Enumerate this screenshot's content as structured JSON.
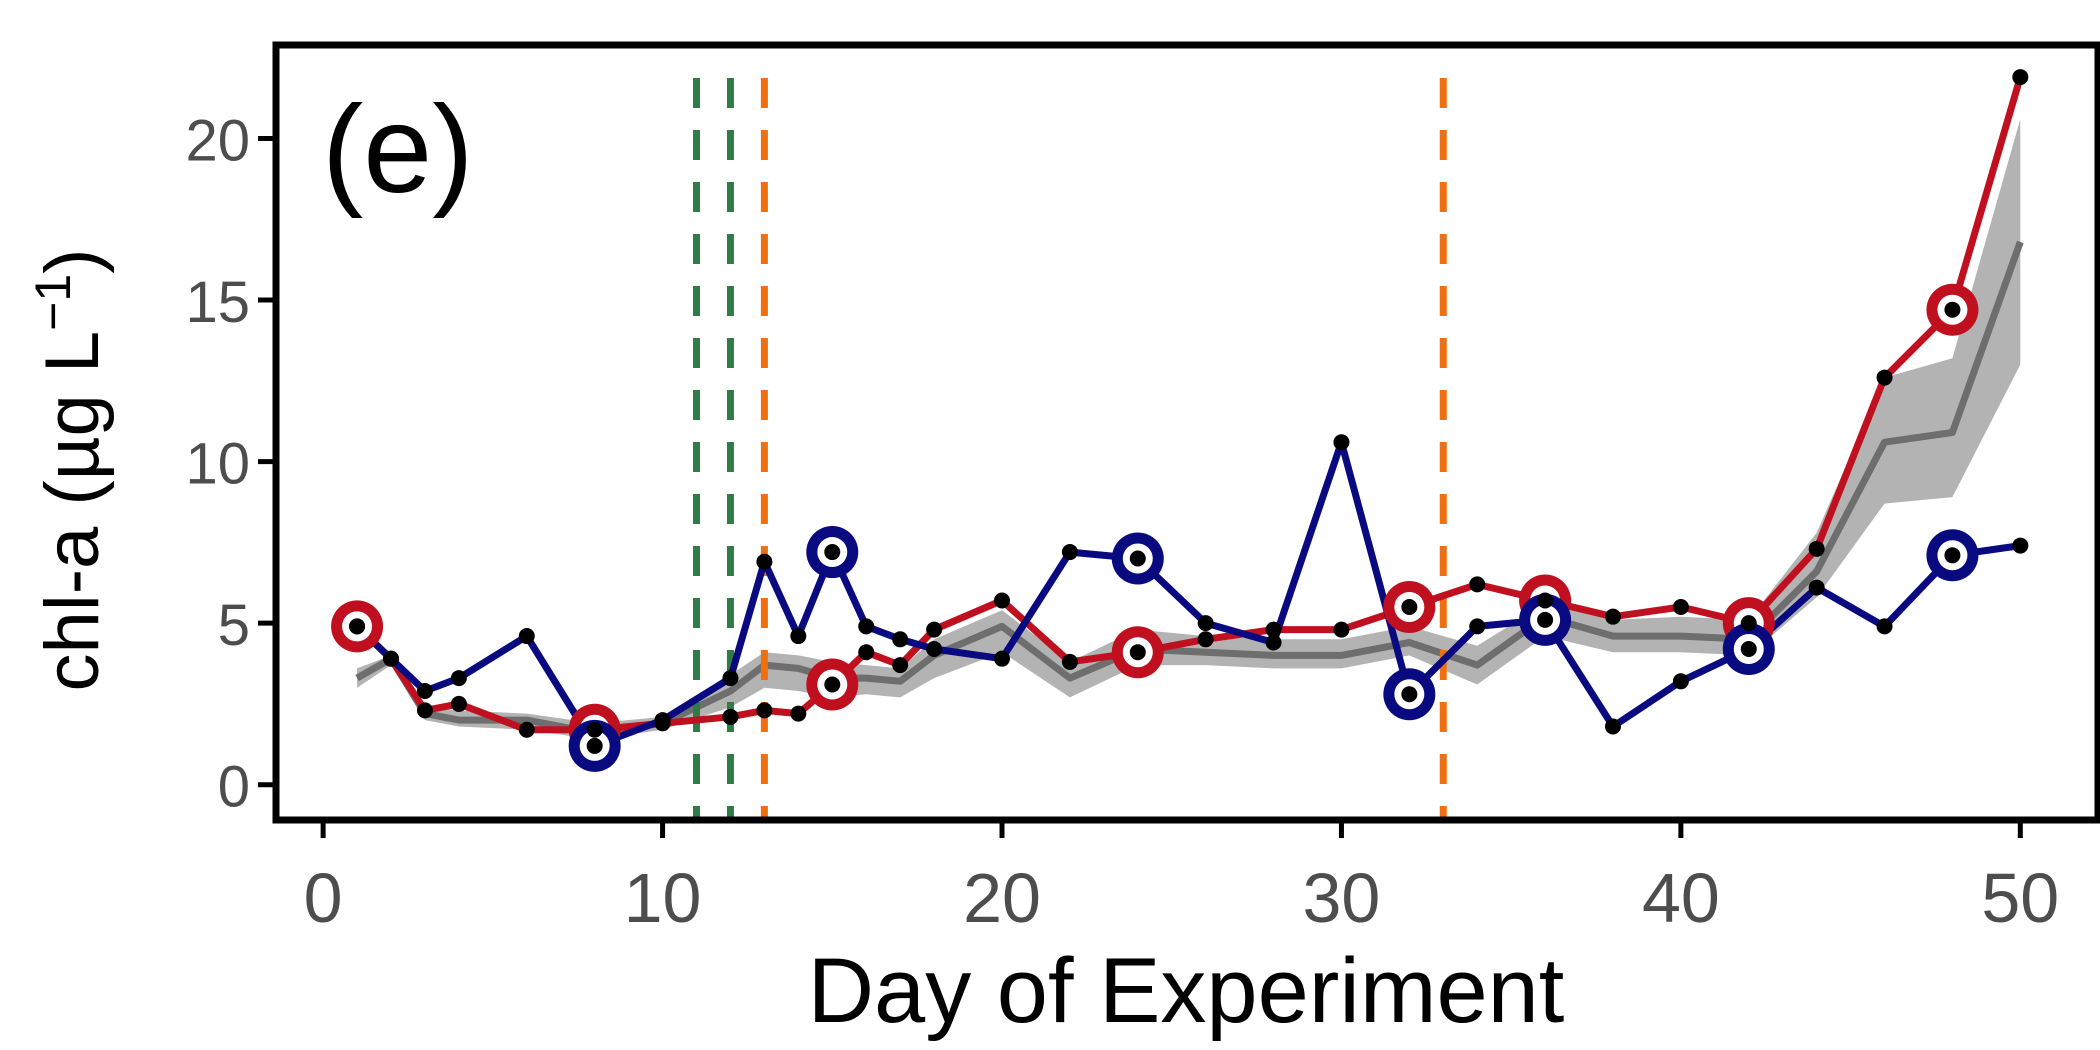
{
  "chart_data": {
    "type": "line",
    "panel_label": "(e)",
    "xlabel": "Day of Experiment",
    "ylabel_main": "chl-a (µg L",
    "ylabel_superscript": "−1",
    "ylabel_close": ")",
    "xlim": [
      -1.3,
      52.2
    ],
    "ylim": [
      -1.0,
      22.8
    ],
    "xticks": [
      0,
      10,
      20,
      30,
      40,
      50
    ],
    "yticks": [
      0,
      5,
      10,
      15,
      20
    ],
    "xtick_labels": [
      "0",
      "10",
      "20",
      "30",
      "40",
      "50"
    ],
    "ytick_labels": [
      "0",
      "5",
      "10",
      "15",
      "20"
    ],
    "grid": false,
    "legend": "none",
    "colors": {
      "red": "#c0101f",
      "blue": "#0a0a80",
      "mean": "#6e6e6e",
      "ribbon": "#b3b3b3",
      "green_line": "#2e7d46",
      "orange_line": "#f07010",
      "point": "#000000",
      "axis": "#000000"
    },
    "vlines": [
      {
        "x": 11,
        "color": "green"
      },
      {
        "x": 12,
        "color": "green"
      },
      {
        "x": 13,
        "color": "orange"
      },
      {
        "x": 33,
        "color": "orange"
      }
    ],
    "series": [
      {
        "key": "red",
        "x": [
          1,
          2,
          3,
          4,
          6,
          8,
          10,
          12,
          13,
          14,
          15,
          16,
          17,
          18,
          20,
          22,
          24,
          26,
          28,
          30,
          32,
          34,
          36,
          38,
          40,
          42,
          44,
          46,
          48,
          50
        ],
        "y": [
          4.9,
          3.9,
          2.3,
          2.5,
          1.7,
          1.7,
          1.9,
          2.1,
          2.3,
          2.2,
          3.1,
          4.1,
          3.7,
          4.8,
          5.7,
          3.8,
          4.1,
          4.5,
          4.8,
          4.8,
          5.5,
          6.2,
          5.7,
          5.2,
          5.5,
          5.0,
          7.3,
          12.6,
          14.7,
          21.9
        ],
        "highlight_x": [
          1,
          8,
          15,
          24,
          32,
          36,
          42,
          48
        ]
      },
      {
        "key": "blue",
        "x": [
          1,
          2,
          3,
          4,
          6,
          8,
          10,
          12,
          13,
          14,
          15,
          16,
          17,
          18,
          20,
          22,
          24,
          26,
          28,
          30,
          32,
          34,
          36,
          38,
          40,
          42,
          44,
          46,
          48,
          50
        ],
        "y": [
          4.9,
          3.9,
          2.9,
          3.3,
          4.6,
          1.2,
          2.0,
          3.3,
          6.9,
          4.6,
          7.2,
          4.9,
          4.5,
          4.2,
          3.9,
          7.2,
          7.0,
          5.0,
          4.4,
          10.6,
          2.8,
          4.9,
          5.1,
          1.8,
          3.2,
          4.2,
          6.1,
          4.9,
          7.1,
          7.4
        ],
        "highlight_x": [
          8,
          15,
          24,
          32,
          36,
          42,
          48
        ]
      }
    ],
    "mean": {
      "x": [
        1,
        2,
        3,
        4,
        6,
        8,
        10,
        12,
        13,
        14,
        15,
        16,
        17,
        18,
        20,
        22,
        24,
        26,
        28,
        30,
        32,
        34,
        36,
        38,
        40,
        42,
        44,
        46,
        48,
        50
      ],
      "y": [
        3.3,
        3.9,
        2.2,
        2.0,
        2.0,
        1.6,
        1.9,
        2.9,
        3.7,
        3.6,
        3.3,
        3.3,
        3.2,
        4.0,
        4.9,
        3.3,
        4.2,
        4.1,
        4.0,
        4.0,
        4.4,
        3.7,
        5.2,
        4.6,
        4.6,
        4.5,
        6.6,
        10.6,
        10.9,
        16.8
      ],
      "lower": [
        3.0,
        3.7,
        2.0,
        1.8,
        1.7,
        1.4,
        1.7,
        2.4,
        3.0,
        2.9,
        2.7,
        2.8,
        2.7,
        3.3,
        4.1,
        2.7,
        3.7,
        3.7,
        3.6,
        3.6,
        4.0,
        3.1,
        4.6,
        4.1,
        4.1,
        4.0,
        5.8,
        8.7,
        8.9,
        13.0
      ],
      "upper": [
        3.6,
        4.0,
        2.4,
        2.3,
        2.2,
        1.9,
        2.1,
        3.4,
        4.1,
        4.0,
        3.8,
        3.7,
        3.6,
        4.5,
        5.4,
        3.8,
        4.8,
        4.6,
        4.5,
        4.5,
        4.9,
        4.3,
        5.6,
        5.1,
        5.2,
        5.1,
        7.8,
        12.6,
        13.2,
        20.6
      ]
    }
  }
}
